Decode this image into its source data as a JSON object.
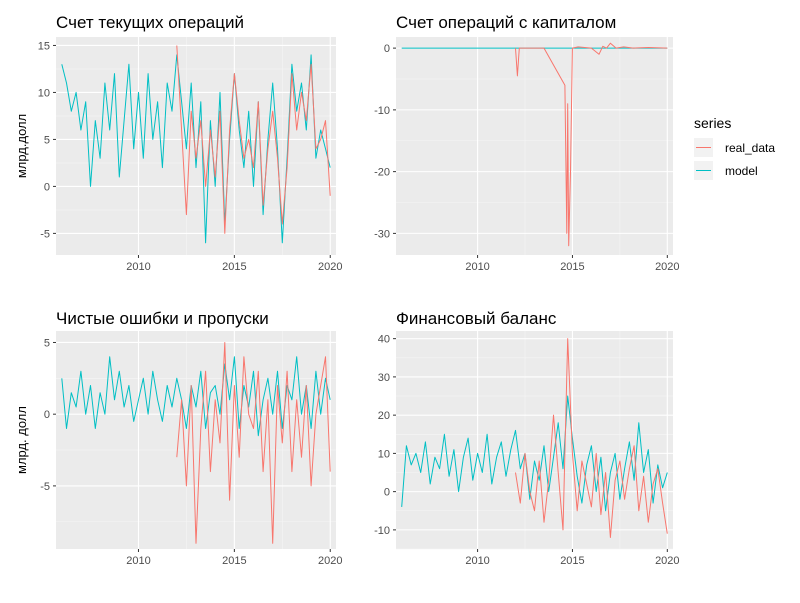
{
  "legend": {
    "title": "series",
    "items": [
      {
        "label": "real_data",
        "color": "#F8766D"
      },
      {
        "label": "model",
        "color": "#00BFC4"
      }
    ],
    "placement": "right"
  },
  "chart_data": [
    {
      "type": "line",
      "title": "Счет текущих операций",
      "xlabel": "",
      "ylabel": "млрд.долл",
      "xlim": [
        2005.7,
        2020.3
      ],
      "ylim": [
        -7.3,
        15.9
      ],
      "x_ticks": [
        2010,
        2015,
        2020
      ],
      "y_ticks": [
        -5,
        0,
        5,
        10,
        15
      ],
      "grid": true,
      "series": [
        {
          "name": "real_data",
          "color": "#F8766D",
          "x": [
            2012.0,
            2012.25,
            2012.5,
            2012.75,
            2013.0,
            2013.25,
            2013.5,
            2013.75,
            2014.0,
            2014.25,
            2014.5,
            2014.75,
            2015.0,
            2015.25,
            2015.5,
            2015.75,
            2016.0,
            2016.25,
            2016.5,
            2016.75,
            2017.0,
            2017.25,
            2017.5,
            2017.75,
            2018.0,
            2018.25,
            2018.5,
            2018.75,
            2019.0,
            2019.25,
            2019.5,
            2019.75,
            2020.0
          ],
          "y": [
            15.0,
            6.0,
            -3.0,
            8.0,
            3.0,
            7.0,
            0.0,
            6.0,
            1.0,
            8.0,
            -5.0,
            6.0,
            12.0,
            7.0,
            3.0,
            5.0,
            2.0,
            9.0,
            -2.0,
            4.0,
            8.0,
            3.0,
            -4.0,
            2.0,
            12.0,
            6.0,
            10.0,
            7.0,
            13.0,
            4.0,
            5.0,
            7.0,
            -1.0
          ]
        },
        {
          "name": "model",
          "color": "#00BFC4",
          "x": [
            2006.0,
            2006.25,
            2006.5,
            2006.75,
            2007.0,
            2007.25,
            2007.5,
            2007.75,
            2008.0,
            2008.25,
            2008.5,
            2008.75,
            2009.0,
            2009.25,
            2009.5,
            2009.75,
            2010.0,
            2010.25,
            2010.5,
            2010.75,
            2011.0,
            2011.25,
            2011.5,
            2011.75,
            2012.0,
            2012.25,
            2012.5,
            2012.75,
            2013.0,
            2013.25,
            2013.5,
            2013.75,
            2014.0,
            2014.25,
            2014.5,
            2014.75,
            2015.0,
            2015.25,
            2015.5,
            2015.75,
            2016.0,
            2016.25,
            2016.5,
            2016.75,
            2017.0,
            2017.25,
            2017.5,
            2017.75,
            2018.0,
            2018.25,
            2018.5,
            2018.75,
            2019.0,
            2019.25,
            2019.5,
            2019.75,
            2020.0
          ],
          "y": [
            13.0,
            11.0,
            8.0,
            10.0,
            6.0,
            9.0,
            0.0,
            7.0,
            3.0,
            11.0,
            6.0,
            12.0,
            1.0,
            7.0,
            13.0,
            4.0,
            10.0,
            3.0,
            12.0,
            5.0,
            9.0,
            2.0,
            11.0,
            8.0,
            14.0,
            9.0,
            4.0,
            11.0,
            2.0,
            9.0,
            -6.0,
            7.0,
            0.0,
            10.0,
            -4.0,
            5.0,
            12.0,
            6.0,
            2.0,
            8.0,
            0.0,
            9.0,
            -3.0,
            5.0,
            11.0,
            4.0,
            -6.0,
            3.0,
            13.0,
            8.0,
            11.0,
            6.0,
            14.0,
            3.0,
            6.0,
            4.0,
            2.0
          ]
        }
      ]
    },
    {
      "type": "line",
      "title": "Счет операций с капиталом",
      "xlabel": "",
      "ylabel": "",
      "xlim": [
        2005.7,
        2020.3
      ],
      "ylim": [
        -33.5,
        1.8
      ],
      "x_ticks": [
        2010,
        2015,
        2020
      ],
      "y_ticks": [
        -30,
        -20,
        -10,
        0
      ],
      "grid": true,
      "series": [
        {
          "name": "real_data",
          "color": "#F8766D",
          "x": [
            2012.0,
            2012.1,
            2012.2,
            2013.5,
            2014.6,
            2014.7,
            2014.75,
            2014.8,
            2014.9,
            2015.0,
            2015.3,
            2016.0,
            2016.4,
            2016.6,
            2016.8,
            2017.0,
            2017.3,
            2017.7,
            2018.2,
            2019.0,
            2020.0
          ],
          "y": [
            0.0,
            -4.5,
            0.0,
            0.0,
            -6.0,
            -30.0,
            -9.0,
            -32.0,
            -20.0,
            0.0,
            0.2,
            0.0,
            -1.0,
            0.3,
            0.0,
            0.8,
            0.0,
            0.2,
            0.0,
            0.1,
            0.0
          ]
        },
        {
          "name": "model",
          "color": "#00BFC4",
          "x": [
            2006.0,
            2020.0
          ],
          "y": [
            0.0,
            0.0
          ]
        }
      ]
    },
    {
      "type": "line",
      "title": "Чистые ошибки и пропуски",
      "xlabel": "",
      "ylabel": "млрд. долл",
      "xlim": [
        2005.7,
        2020.3
      ],
      "ylim": [
        -9.4,
        5.8
      ],
      "x_ticks": [
        2010,
        2015,
        2020
      ],
      "y_ticks": [
        -5,
        0,
        5
      ],
      "grid": true,
      "series": [
        {
          "name": "real_data",
          "color": "#F8766D",
          "x": [
            2012.0,
            2012.25,
            2012.5,
            2012.75,
            2013.0,
            2013.25,
            2013.5,
            2013.75,
            2014.0,
            2014.25,
            2014.5,
            2014.75,
            2015.0,
            2015.25,
            2015.5,
            2015.75,
            2016.0,
            2016.25,
            2016.5,
            2016.75,
            2017.0,
            2017.25,
            2017.5,
            2017.75,
            2018.0,
            2018.25,
            2018.5,
            2018.75,
            2019.0,
            2019.25,
            2019.5,
            2019.75,
            2020.0
          ],
          "y": [
            -3.0,
            1.0,
            -5.0,
            2.0,
            -9.0,
            -1.0,
            3.0,
            -4.0,
            1.0,
            -2.0,
            5.0,
            -6.0,
            2.0,
            -3.0,
            4.0,
            0.0,
            -1.0,
            3.0,
            -4.0,
            1.0,
            -9.0,
            2.0,
            -2.0,
            3.0,
            -4.0,
            1.0,
            -3.0,
            2.0,
            -5.0,
            0.0,
            2.0,
            4.0,
            -4.0
          ]
        },
        {
          "name": "model",
          "color": "#00BFC4",
          "x": [
            2006.0,
            2006.25,
            2006.5,
            2006.75,
            2007.0,
            2007.25,
            2007.5,
            2007.75,
            2008.0,
            2008.25,
            2008.5,
            2008.75,
            2009.0,
            2009.25,
            2009.5,
            2009.75,
            2010.0,
            2010.25,
            2010.5,
            2010.75,
            2011.0,
            2011.25,
            2011.5,
            2011.75,
            2012.0,
            2012.25,
            2012.5,
            2012.75,
            2013.0,
            2013.25,
            2013.5,
            2013.75,
            2014.0,
            2014.25,
            2014.5,
            2014.75,
            2015.0,
            2015.25,
            2015.5,
            2015.75,
            2016.0,
            2016.25,
            2016.5,
            2016.75,
            2017.0,
            2017.25,
            2017.5,
            2017.75,
            2018.0,
            2018.25,
            2018.5,
            2018.75,
            2019.0,
            2019.25,
            2019.5,
            2019.75,
            2020.0
          ],
          "y": [
            2.5,
            -1.0,
            1.5,
            0.5,
            3.0,
            0.0,
            2.0,
            -1.0,
            1.5,
            0.0,
            4.0,
            1.0,
            3.0,
            0.5,
            2.0,
            -0.5,
            1.0,
            2.5,
            0.0,
            3.0,
            1.0,
            -0.5,
            2.0,
            0.5,
            2.5,
            1.0,
            -1.0,
            2.0,
            0.5,
            3.0,
            -1.0,
            1.5,
            2.0,
            0.0,
            3.5,
            1.0,
            4.0,
            -1.0,
            2.0,
            0.5,
            3.0,
            -1.5,
            1.0,
            2.5,
            0.0,
            3.0,
            -1.0,
            2.0,
            1.0,
            4.0,
            0.0,
            2.0,
            -1.0,
            3.0,
            0.0,
            2.5,
            1.0
          ]
        }
      ]
    },
    {
      "type": "line",
      "title": "Финансовый баланс",
      "xlabel": "",
      "ylabel": "",
      "xlim": [
        2005.7,
        2020.3
      ],
      "ylim": [
        -15.0,
        42.0
      ],
      "x_ticks": [
        2010,
        2015,
        2020
      ],
      "y_ticks": [
        -10,
        0,
        10,
        20,
        30,
        40
      ],
      "grid": true,
      "series": [
        {
          "name": "real_data",
          "color": "#F8766D",
          "x": [
            2012.0,
            2012.25,
            2012.5,
            2012.75,
            2013.0,
            2013.25,
            2013.5,
            2013.75,
            2014.0,
            2014.25,
            2014.5,
            2014.75,
            2015.0,
            2015.25,
            2015.5,
            2015.75,
            2016.0,
            2016.25,
            2016.5,
            2016.75,
            2017.0,
            2017.25,
            2017.5,
            2017.75,
            2018.0,
            2018.25,
            2018.5,
            2018.75,
            2019.0,
            2019.25,
            2019.5,
            2019.75,
            2020.0
          ],
          "y": [
            5.0,
            -3.0,
            10.0,
            0.0,
            -5.0,
            8.0,
            -8.0,
            3.0,
            20.0,
            5.0,
            -10.0,
            40.0,
            10.0,
            -5.0,
            8.0,
            2.0,
            -4.0,
            10.0,
            -6.0,
            5.0,
            -12.0,
            3.0,
            8.0,
            -2.0,
            6.0,
            12.0,
            -5.0,
            4.0,
            -8.0,
            2.0,
            6.0,
            -3.0,
            -11.0
          ]
        },
        {
          "name": "model",
          "color": "#00BFC4",
          "x": [
            2006.0,
            2006.25,
            2006.5,
            2006.75,
            2007.0,
            2007.25,
            2007.5,
            2007.75,
            2008.0,
            2008.25,
            2008.5,
            2008.75,
            2009.0,
            2009.25,
            2009.5,
            2009.75,
            2010.0,
            2010.25,
            2010.5,
            2010.75,
            2011.0,
            2011.25,
            2011.5,
            2011.75,
            2012.0,
            2012.25,
            2012.5,
            2012.75,
            2013.0,
            2013.25,
            2013.5,
            2013.75,
            2014.0,
            2014.25,
            2014.5,
            2014.75,
            2015.0,
            2015.25,
            2015.5,
            2015.75,
            2016.0,
            2016.25,
            2016.5,
            2016.75,
            2017.0,
            2017.25,
            2017.5,
            2017.75,
            2018.0,
            2018.25,
            2018.5,
            2018.75,
            2019.0,
            2019.25,
            2019.5,
            2019.75,
            2020.0
          ],
          "y": [
            -4.0,
            12.0,
            7.0,
            10.0,
            5.0,
            13.0,
            2.0,
            9.0,
            6.0,
            15.0,
            4.0,
            11.0,
            0.0,
            9.0,
            14.0,
            3.0,
            10.0,
            5.0,
            15.0,
            2.0,
            9.0,
            13.0,
            4.0,
            11.0,
            16.0,
            6.0,
            10.0,
            -2.0,
            8.0,
            3.0,
            12.0,
            0.0,
            9.0,
            18.0,
            6.0,
            25.0,
            14.0,
            4.0,
            -3.0,
            7.0,
            12.0,
            0.0,
            9.0,
            -5.0,
            5.0,
            10.0,
            -2.0,
            6.0,
            13.0,
            3.0,
            18.0,
            5.0,
            11.0,
            -3.0,
            7.0,
            1.0,
            5.0
          ]
        }
      ]
    }
  ]
}
